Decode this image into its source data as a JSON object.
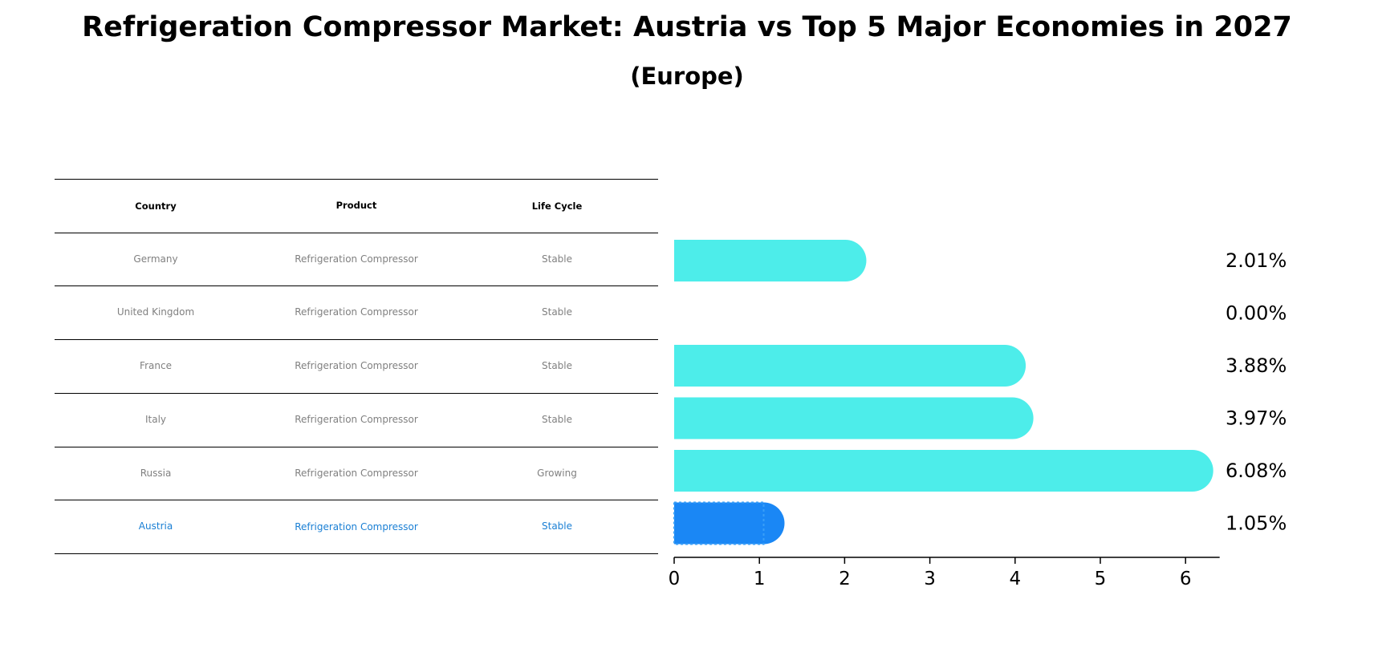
{
  "title": "Refrigeration Compressor Market: Austria vs Top 5 Major Economies in 2027",
  "subtitle": "(Europe)",
  "table": {
    "headers": [
      "Country",
      "Product",
      "Life Cycle"
    ],
    "rows": [
      {
        "country": "Germany",
        "product": "Refrigeration Compressor",
        "life_cycle": "Stable"
      },
      {
        "country": "United Kingdom",
        "product": "Refrigeration Compressor",
        "life_cycle": "Stable"
      },
      {
        "country": "France",
        "product": "Refrigeration Compressor",
        "life_cycle": "Stable"
      },
      {
        "country": "Italy",
        "product": "Refrigeration Compressor",
        "life_cycle": "Stable"
      },
      {
        "country": "Russia",
        "product": "Refrigeration Compressor",
        "life_cycle": "Growing"
      },
      {
        "country": "Austria",
        "product": "Refrigeration Compressor",
        "life_cycle": "Stable"
      }
    ],
    "highlight_row": 5
  },
  "colors": {
    "bar": "#4dedea",
    "highlight_bar": "#1a87f5",
    "highlight_text": "#1a7fd4",
    "muted_text": "#808080"
  },
  "chart_data": {
    "type": "bar",
    "orientation": "horizontal",
    "title": "Refrigeration Compressor Market: Austria vs Top 5 Major Economies in 2027",
    "subtitle": "(Europe)",
    "categories": [
      "Germany",
      "United Kingdom",
      "France",
      "Italy",
      "Russia",
      "Austria"
    ],
    "values": [
      2.01,
      0.0,
      3.88,
      3.97,
      6.08,
      1.05
    ],
    "value_labels": [
      "2.01%",
      "0.00%",
      "3.88%",
      "3.97%",
      "6.08%",
      "1.05%"
    ],
    "highlight": "Austria",
    "xlim": [
      0,
      6.4
    ],
    "xticks": [
      0,
      1,
      2,
      3,
      4,
      5,
      6
    ],
    "xlabel": "",
    "ylabel": "",
    "grid": false,
    "legend": "none"
  }
}
